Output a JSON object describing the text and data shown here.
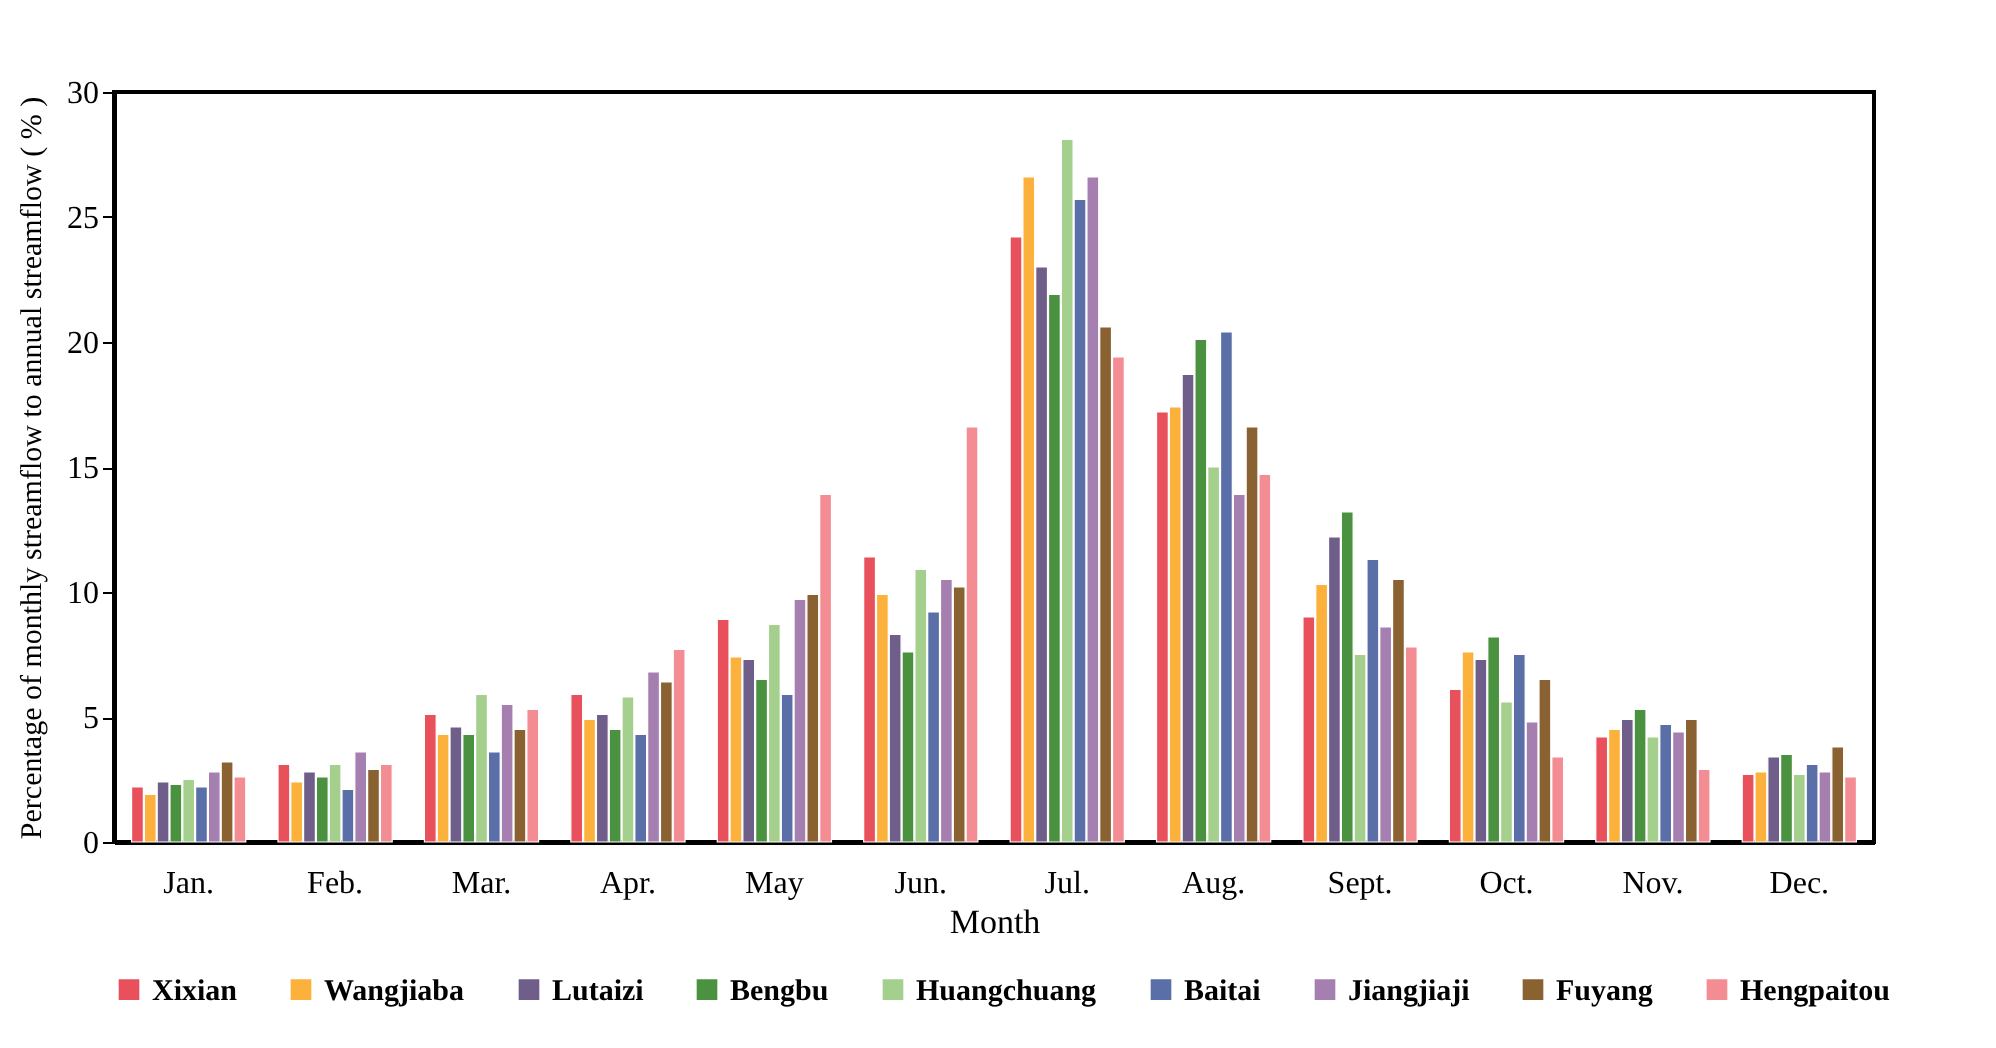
{
  "chart_data": {
    "type": "bar",
    "xlabel": "Month",
    "ylabel": "Percentage of monthly streamflow to annual streamflow ( % )",
    "categories": [
      "Jan.",
      "Feb.",
      "Mar.",
      "Apr.",
      "May",
      "Jun.",
      "Jul.",
      "Aug.",
      "Sept.",
      "Oct.",
      "Nov.",
      "Dec."
    ],
    "ylim": [
      0,
      30
    ],
    "yticks": [
      0,
      5,
      10,
      15,
      20,
      25,
      30
    ],
    "grid": false,
    "legend": "bottom",
    "series": [
      {
        "name": "Xixian",
        "color": "#e8505b",
        "values": [
          2.2,
          3.1,
          5.1,
          5.9,
          8.9,
          11.4,
          24.2,
          17.2,
          9.0,
          6.1,
          4.2,
          2.7
        ]
      },
      {
        "name": "Wangjiaba",
        "color": "#fbb13c",
        "values": [
          1.9,
          2.4,
          4.3,
          4.9,
          7.4,
          9.9,
          26.6,
          17.4,
          10.3,
          7.6,
          4.5,
          2.8
        ]
      },
      {
        "name": "Lutaizi",
        "color": "#6f5e8a",
        "values": [
          2.4,
          2.8,
          4.6,
          5.1,
          7.3,
          8.3,
          23.0,
          18.7,
          12.2,
          7.3,
          4.9,
          3.4
        ]
      },
      {
        "name": "Bengbu",
        "color": "#4a9140",
        "values": [
          2.3,
          2.6,
          4.3,
          4.5,
          6.5,
          7.6,
          21.9,
          20.1,
          13.2,
          8.2,
          5.3,
          3.5
        ]
      },
      {
        "name": "Huangchuang",
        "color": "#a5cf8c",
        "values": [
          2.5,
          3.1,
          5.9,
          5.8,
          8.7,
          10.9,
          28.1,
          15.0,
          7.5,
          5.6,
          4.2,
          2.7
        ]
      },
      {
        "name": "Baitai",
        "color": "#5a6ea8",
        "values": [
          2.2,
          2.1,
          3.6,
          4.3,
          5.9,
          9.2,
          25.7,
          20.4,
          11.3,
          7.5,
          4.7,
          3.1
        ]
      },
      {
        "name": "Jiangjiaji",
        "color": "#a57fb0",
        "values": [
          2.8,
          3.6,
          5.5,
          6.8,
          9.7,
          10.5,
          26.6,
          13.9,
          8.6,
          4.8,
          4.4,
          2.8
        ]
      },
      {
        "name": "Fuyang",
        "color": "#8a6232",
        "values": [
          3.2,
          2.9,
          4.5,
          6.4,
          9.9,
          10.2,
          20.6,
          16.6,
          10.5,
          6.5,
          4.9,
          3.8
        ]
      },
      {
        "name": "Hengpaitou",
        "color": "#f38d93",
        "values": [
          2.6,
          3.1,
          5.3,
          7.7,
          13.9,
          16.6,
          19.4,
          14.7,
          7.8,
          3.4,
          2.9,
          2.6
        ]
      }
    ]
  }
}
